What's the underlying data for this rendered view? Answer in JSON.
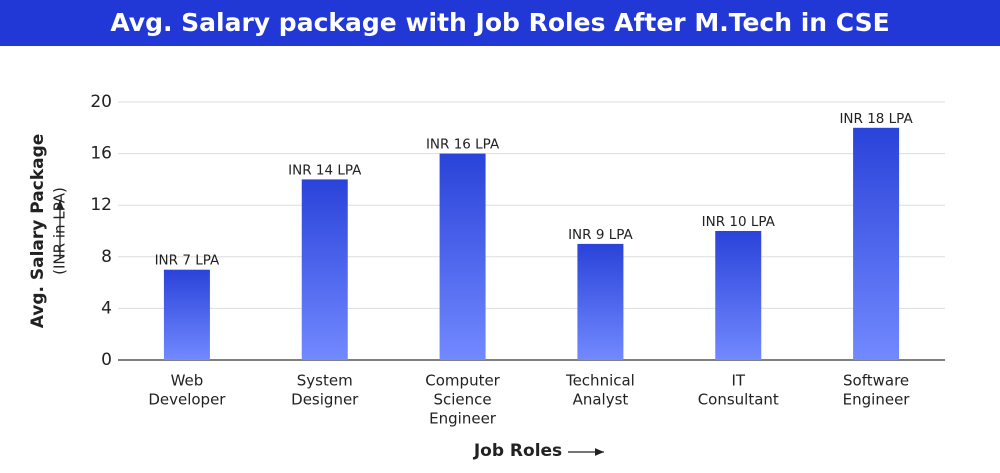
{
  "chart_data": {
    "type": "bar",
    "title": "Avg. Salary package with Job Roles After M.Tech in CSE",
    "y_label": [
      "Avg. Salary Package",
      "(INR in LPA)"
    ],
    "x_label": "Job Roles",
    "categories": [
      [
        "Web",
        "Developer"
      ],
      [
        "System",
        "Designer"
      ],
      [
        "Computer",
        "Science",
        "Engineer"
      ],
      [
        "Technical",
        "Analyst"
      ],
      [
        "IT",
        "Consultant"
      ],
      [
        "Software",
        "Engineer"
      ]
    ],
    "values": [
      7,
      14,
      16,
      9,
      10,
      18
    ],
    "value_labels": [
      "INR 7 LPA",
      "INR 14 LPA",
      "INR 16 LPA",
      "INR 9 LPA",
      "INR 10 LPA",
      "INR 18 LPA"
    ],
    "color": "#2a43d9",
    "ylim": [
      0,
      20
    ],
    "yticks": [
      0,
      4,
      8,
      12,
      16,
      20
    ],
    "grid": true
  }
}
